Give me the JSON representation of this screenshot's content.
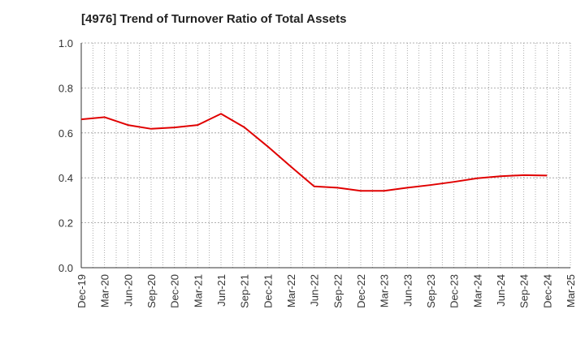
{
  "chart_data": {
    "type": "line",
    "title": "[4976]  Trend of Turnover Ratio of Total Assets",
    "xlabel": "",
    "ylabel": "",
    "x": [
      "Dec-19",
      "Mar-20",
      "Jun-20",
      "Sep-20",
      "Dec-20",
      "Mar-21",
      "Jun-21",
      "Sep-21",
      "Dec-21",
      "Mar-22",
      "Jun-22",
      "Sep-22",
      "Dec-22",
      "Mar-23",
      "Jun-23",
      "Sep-23",
      "Dec-23",
      "Mar-24",
      "Jun-24",
      "Sep-24",
      "Dec-24",
      "Mar-25"
    ],
    "series": [
      {
        "values": [
          0.66,
          0.67,
          0.635,
          0.618,
          0.624,
          0.635,
          0.685,
          0.625,
          0.54,
          0.45,
          0.362,
          0.356,
          0.342,
          0.342,
          0.356,
          0.368,
          0.382,
          0.398,
          0.407,
          0.412,
          0.41,
          null
        ],
        "color": "#e00000"
      }
    ],
    "ylim": [
      0.0,
      1.0
    ],
    "yticks": [
      "0.0",
      "0.2",
      "0.4",
      "0.6",
      "0.8",
      "1.0"
    ],
    "grid": true,
    "legend": "none"
  }
}
